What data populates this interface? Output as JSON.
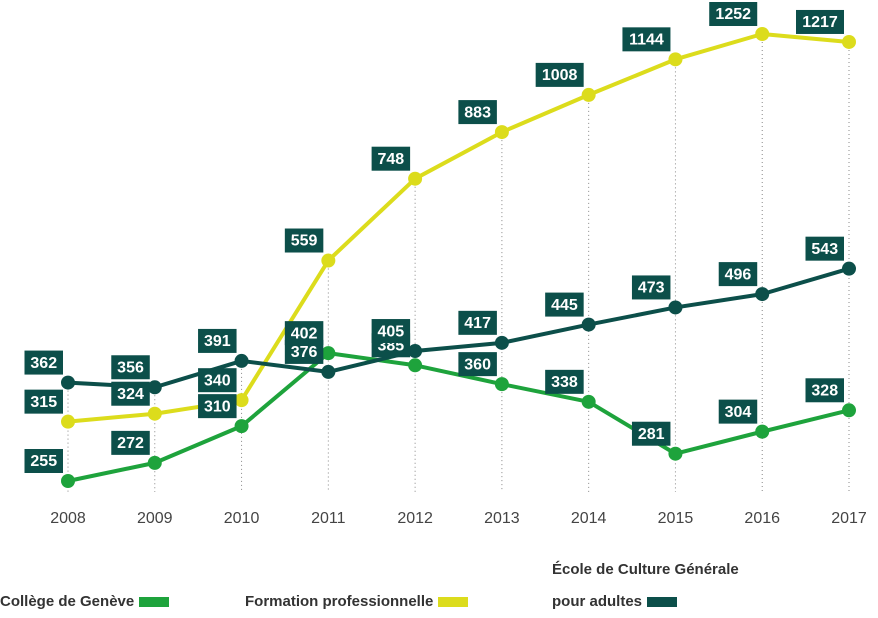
{
  "chart_data": {
    "type": "line",
    "categories": [
      "2008",
      "2009",
      "2010",
      "2011",
      "2012",
      "2013",
      "2014",
      "2015",
      "2016",
      "2017"
    ],
    "series": [
      {
        "name": "Collège de Genève",
        "color": "#1ea33c",
        "values": [
          255,
          272,
          310,
          402,
          385,
          360,
          338,
          281,
          304,
          328
        ]
      },
      {
        "name": "Formation professionnelle",
        "color": "#dcdc1c",
        "values": [
          315,
          324,
          340,
          559,
          748,
          883,
          1008,
          1144,
          1252,
          1217
        ]
      },
      {
        "name": "École de Culture Générale pour adultes",
        "color": "#0c4f4a",
        "values": [
          362,
          356,
          391,
          376,
          405,
          417,
          445,
          473,
          496,
          543
        ]
      }
    ]
  }
}
